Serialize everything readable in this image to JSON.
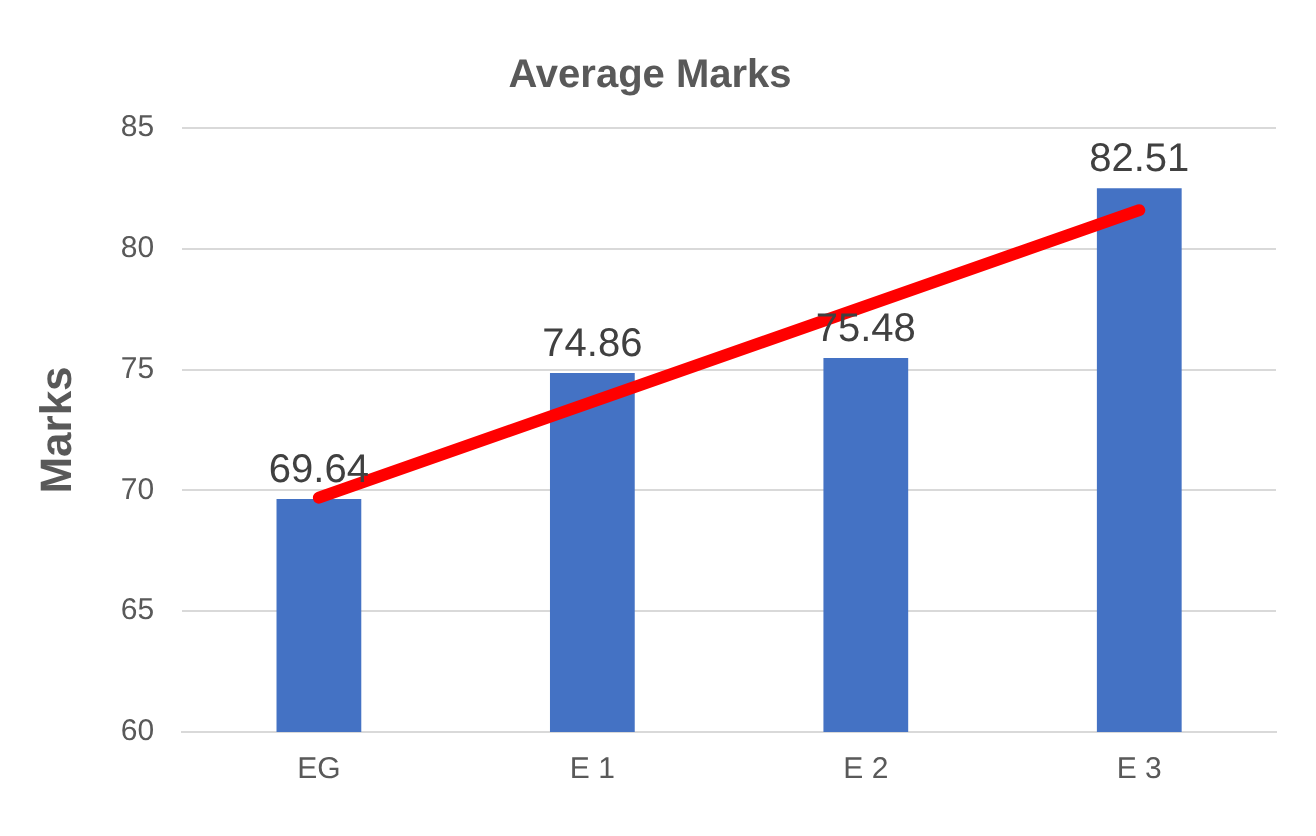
{
  "chart_data": {
    "type": "bar",
    "title": "Average Marks",
    "ylabel": "Marks",
    "categories": [
      "EG",
      "E 1",
      "E 2",
      "E 3"
    ],
    "series": [
      {
        "color": "#4472c4",
        "values": [
          69.64,
          74.86,
          75.48,
          82.51
        ],
        "value_labels": [
          "69.64",
          "74.86",
          "75.48",
          "82.51"
        ]
      },
      {
        "type": "line",
        "color": "#ff0000",
        "x": [
          "EG",
          "E 3"
        ],
        "values": [
          69.7,
          81.6
        ],
        "marker": "none",
        "line_style": "solid"
      }
    ],
    "ylim": [
      60,
      85
    ],
    "yticks": [
      60,
      65,
      70,
      75,
      80,
      85
    ],
    "grid": "y",
    "legend": false
  }
}
